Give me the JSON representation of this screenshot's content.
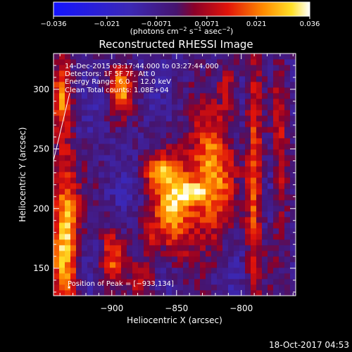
{
  "chart_data": {
    "type": "heatmap",
    "title": "Reconstructed RHESSI Image",
    "xlabel": "Heliocentric X (arcsec)",
    "ylabel": "Heliocentric Y (arcsec)",
    "xlim": [
      -945,
      -758
    ],
    "ylim": [
      127,
      330
    ],
    "x_ticks": [
      -900,
      -850,
      -800
    ],
    "y_ticks": [
      150,
      200,
      250,
      300
    ],
    "colorbar": {
      "range": [
        -0.036,
        0.036
      ],
      "tick_values": [
        -0.036,
        -0.021,
        -0.0071,
        0.0071,
        0.021,
        0.036
      ],
      "tick_labels": [
        "−0.036",
        "−0.021",
        "−0.0071",
        "0.0071",
        "0.021",
        "0.036"
      ],
      "unit_main": "(photons cm",
      "unit_sup1": "−2",
      "unit_mid1": " s",
      "unit_sup2": "−1",
      "unit_mid2": " asec",
      "unit_sup3": "−2",
      "unit_end": ")"
    },
    "annotations": [
      "14-Dec-2015 03:17:44.000 to 03:27:44.000",
      "Detectors: 1F 5F 7F, Att 0",
      "Energy Range: 6.0 − 12.0 keV",
      "Clean    Total counts: 1.08E+04"
    ],
    "peak_label": "Position of Peak = [−933,134]",
    "peak": [
      -933,
      134
    ],
    "sources": [
      {
        "x": -852,
        "y": 205,
        "value": 0.034,
        "sx": 11,
        "sy": 28
      },
      {
        "x": -823,
        "y": 228,
        "value": 0.032,
        "sx": 11,
        "sy": 36
      },
      {
        "x": -838,
        "y": 213,
        "value": 0.022,
        "sx": 7,
        "sy": 6
      },
      {
        "x": -865,
        "y": 232,
        "value": 0.018,
        "sx": 8,
        "sy": 9
      },
      {
        "x": -936,
        "y": 178,
        "value": 0.036,
        "sx": 7,
        "sy": 45
      },
      {
        "x": -938,
        "y": 295,
        "value": 0.024,
        "sx": 5,
        "sy": 24
      },
      {
        "x": -893,
        "y": 300,
        "value": 0.028,
        "sx": 6,
        "sy": 14
      },
      {
        "x": -900,
        "y": 160,
        "value": 0.022,
        "sx": 6,
        "sy": 16
      },
      {
        "x": -876,
        "y": 140,
        "value": 0.016,
        "sx": 6,
        "sy": 14
      },
      {
        "x": -790,
        "y": 225,
        "value": 0.024,
        "sx": 4,
        "sy": 70
      },
      {
        "x": -770,
        "y": 245,
        "value": 0.016,
        "sx": 4,
        "sy": 50
      },
      {
        "x": -810,
        "y": 300,
        "value": 0.016,
        "sx": 5,
        "sy": 18
      },
      {
        "x": -872,
        "y": 178,
        "value": 0.012,
        "sx": 6,
        "sy": 8
      }
    ]
  },
  "footer": {
    "timestamp": "18-Oct-2017 04:53"
  }
}
